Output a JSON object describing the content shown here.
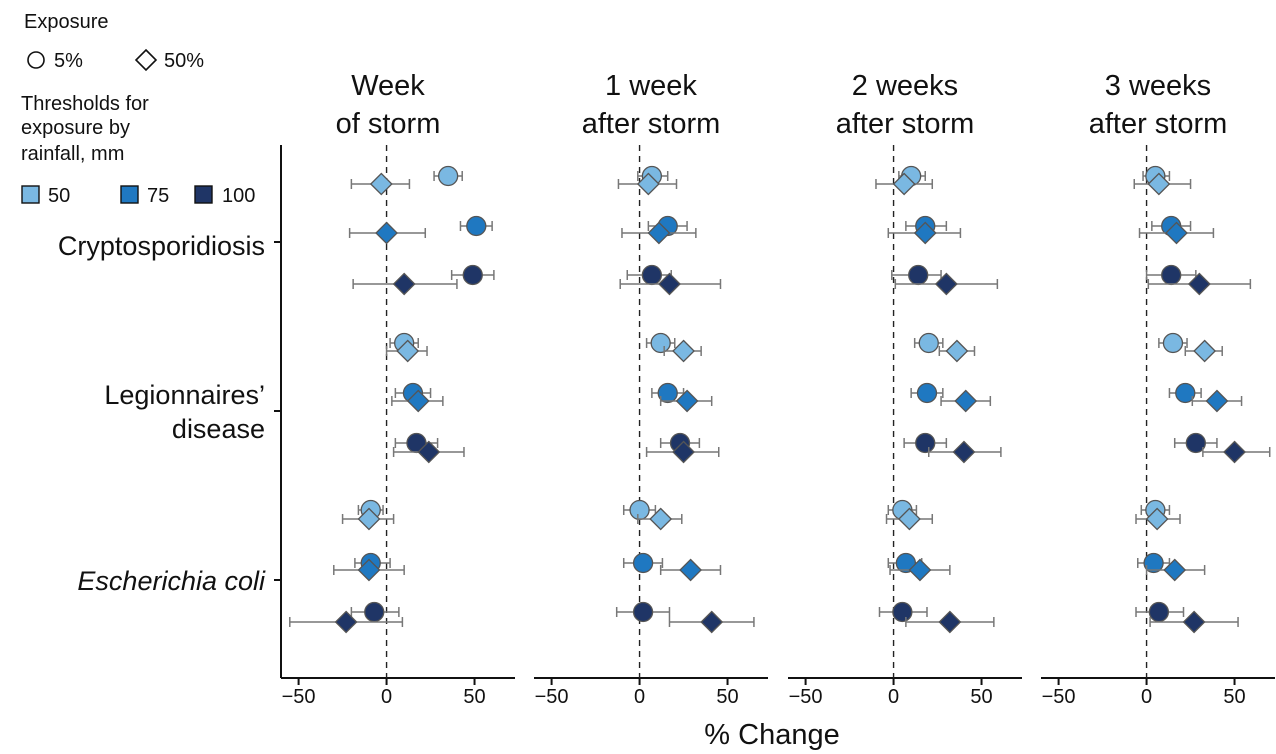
{
  "legend": {
    "exposure_title": "Exposure",
    "exposure_items": [
      {
        "shape": "circle",
        "label": "5%"
      },
      {
        "shape": "diamond",
        "label": "50%"
      }
    ],
    "threshold_title_lines": [
      "Thresholds for",
      "exposure by",
      "rainfall, mm"
    ],
    "threshold_items": [
      {
        "label": "50",
        "color": "#7ab8e2"
      },
      {
        "label": "75",
        "color": "#1f78c1"
      },
      {
        "label": "100",
        "color": "#1f3566"
      }
    ]
  },
  "axis_title": "% Change",
  "colors": {
    "t50": "#7ab8e2",
    "t75": "#1f78c1",
    "t100": "#1f3566",
    "stroke": "#555555",
    "errorbar": "#777777"
  },
  "chart_data": {
    "type": "scatter",
    "subtype": "forest-plot-with-error-bars",
    "xlabel": "% Change",
    "xlim": [
      -60,
      73
    ],
    "xticks": [
      -50,
      0,
      50
    ],
    "reference_line": 0,
    "panels": [
      {
        "title_lines": [
          "Week",
          "of storm"
        ]
      },
      {
        "title_lines": [
          "1 week",
          "after storm"
        ]
      },
      {
        "title_lines": [
          "2 weeks",
          "after storm"
        ]
      },
      {
        "title_lines": [
          "3 weeks",
          "after storm"
        ]
      }
    ],
    "diseases": [
      {
        "label_lines": [
          "Cryptosporidiosis"
        ],
        "italic": false
      },
      {
        "label_lines": [
          "Legionnaires’",
          "disease"
        ],
        "italic": false
      },
      {
        "label_lines": [
          "Escherichia coli"
        ],
        "italic": true
      }
    ],
    "series": [
      {
        "name": "5%",
        "shape": "circle",
        "threshold": "50",
        "disease": 0,
        "values": [
          [
            35,
            27,
            43
          ],
          [
            7,
            -1,
            16
          ],
          [
            10,
            3,
            18
          ],
          [
            5,
            -2,
            13
          ]
        ]
      },
      {
        "name": "50%",
        "shape": "diamond",
        "threshold": "50",
        "disease": 0,
        "values": [
          [
            -3,
            -20,
            13
          ],
          [
            5,
            -12,
            21
          ],
          [
            6,
            -10,
            22
          ],
          [
            7,
            -7,
            25
          ]
        ]
      },
      {
        "name": "5%",
        "shape": "circle",
        "threshold": "75",
        "disease": 0,
        "values": [
          [
            51,
            42,
            60
          ],
          [
            16,
            5,
            27
          ],
          [
            18,
            7,
            30
          ],
          [
            14,
            3,
            25
          ]
        ]
      },
      {
        "name": "50%",
        "shape": "diamond",
        "threshold": "75",
        "disease": 0,
        "values": [
          [
            0,
            -21,
            22
          ],
          [
            11,
            -10,
            32
          ],
          [
            18,
            -3,
            38
          ],
          [
            17,
            -4,
            38
          ]
        ]
      },
      {
        "name": "5%",
        "shape": "circle",
        "threshold": "100",
        "disease": 0,
        "values": [
          [
            49,
            37,
            61
          ],
          [
            7,
            -7,
            18
          ],
          [
            14,
            -1,
            27
          ],
          [
            14,
            0,
            28
          ]
        ]
      },
      {
        "name": "50%",
        "shape": "diamond",
        "threshold": "100",
        "disease": 0,
        "values": [
          [
            10,
            -19,
            40
          ],
          [
            17,
            -11,
            46
          ],
          [
            30,
            1,
            59
          ],
          [
            30,
            1,
            59
          ]
        ]
      },
      {
        "name": "5%",
        "shape": "circle",
        "threshold": "50",
        "disease": 1,
        "values": [
          [
            10,
            2,
            18
          ],
          [
            12,
            4,
            20
          ],
          [
            20,
            12,
            28
          ],
          [
            15,
            7,
            23
          ]
        ]
      },
      {
        "name": "50%",
        "shape": "diamond",
        "threshold": "50",
        "disease": 1,
        "values": [
          [
            12,
            0,
            23
          ],
          [
            25,
            14,
            35
          ],
          [
            36,
            26,
            46
          ],
          [
            33,
            22,
            43
          ]
        ]
      },
      {
        "name": "5%",
        "shape": "circle",
        "threshold": "75",
        "disease": 1,
        "values": [
          [
            15,
            5,
            25
          ],
          [
            16,
            7,
            25
          ],
          [
            19,
            10,
            28
          ],
          [
            22,
            13,
            31
          ]
        ]
      },
      {
        "name": "50%",
        "shape": "diamond",
        "threshold": "75",
        "disease": 1,
        "values": [
          [
            18,
            3,
            32
          ],
          [
            27,
            12,
            41
          ],
          [
            41,
            27,
            55
          ],
          [
            40,
            26,
            54
          ]
        ]
      },
      {
        "name": "5%",
        "shape": "circle",
        "threshold": "100",
        "disease": 1,
        "values": [
          [
            17,
            5,
            29
          ],
          [
            23,
            12,
            34
          ],
          [
            18,
            6,
            30
          ],
          [
            28,
            16,
            40
          ]
        ]
      },
      {
        "name": "50%",
        "shape": "diamond",
        "threshold": "100",
        "disease": 1,
        "values": [
          [
            24,
            4,
            44
          ],
          [
            25,
            4,
            45
          ],
          [
            40,
            20,
            61
          ],
          [
            50,
            32,
            70
          ]
        ]
      },
      {
        "name": "5%",
        "shape": "circle",
        "threshold": "50",
        "disease": 2,
        "values": [
          [
            -9,
            -16,
            -2
          ],
          [
            0,
            -9,
            9
          ],
          [
            5,
            -3,
            13
          ],
          [
            5,
            -3,
            13
          ]
        ]
      },
      {
        "name": "50%",
        "shape": "diamond",
        "threshold": "50",
        "disease": 2,
        "values": [
          [
            -10,
            -25,
            4
          ],
          [
            12,
            -1,
            24
          ],
          [
            9,
            -4,
            22
          ],
          [
            6,
            -6,
            19
          ]
        ]
      },
      {
        "name": "5%",
        "shape": "circle",
        "threshold": "75",
        "disease": 2,
        "values": [
          [
            -9,
            -18,
            2
          ],
          [
            2,
            -9,
            13
          ],
          [
            7,
            -3,
            16
          ],
          [
            4,
            -5,
            13
          ]
        ]
      },
      {
        "name": "50%",
        "shape": "diamond",
        "threshold": "75",
        "disease": 2,
        "values": [
          [
            -10,
            -30,
            10
          ],
          [
            29,
            12,
            46
          ],
          [
            15,
            -2,
            32
          ],
          [
            16,
            0,
            33
          ]
        ]
      },
      {
        "name": "5%",
        "shape": "circle",
        "threshold": "100",
        "disease": 2,
        "values": [
          [
            -7,
            -20,
            7
          ],
          [
            2,
            -13,
            17
          ],
          [
            5,
            -8,
            19
          ],
          [
            7,
            -6,
            21
          ]
        ]
      },
      {
        "name": "50%",
        "shape": "diamond",
        "threshold": "100",
        "disease": 2,
        "values": [
          [
            -23,
            -55,
            9
          ],
          [
            41,
            17,
            65
          ],
          [
            32,
            7,
            57
          ],
          [
            27,
            2,
            52
          ]
        ]
      }
    ]
  }
}
